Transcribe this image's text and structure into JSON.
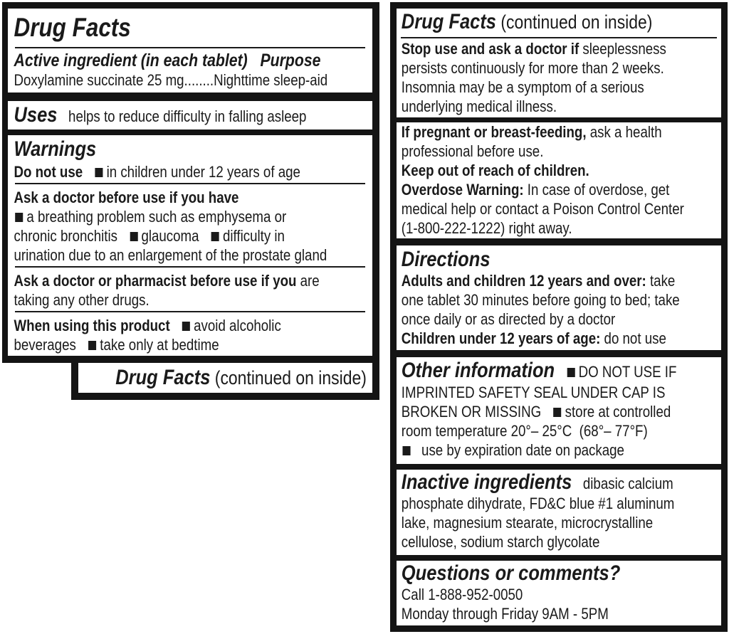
{
  "left_panel": {
    "sections": [
      {
        "groups": [
          [
            [
              [
                "t-big",
                "Drug Facts"
              ]
            ]
          ],
          [
            [
              [
                "t-sub",
                "Active ingredient (in each tablet)   Purpose"
              ]
            ],
            [
              [
                "n",
                "Doxylamine succinate 25 mg........Nighttime sleep-aid"
              ]
            ]
          ]
        ]
      },
      {
        "groups": [
          [
            [
              [
                "t",
                "Uses"
              ],
              [
                "n",
                "   helps to reduce difficulty in falling asleep"
              ]
            ]
          ]
        ]
      },
      {
        "groups": [
          [
            [
              [
                "t",
                "Warnings"
              ]
            ],
            [
              [
                "b",
                "Do not use"
              ],
              [
                "n",
                "   "
              ],
              [
                "sq",
                ""
              ],
              [
                "n",
                "in children under 12 years of age"
              ]
            ]
          ],
          [
            [
              [
                "b",
                "Ask a doctor before use if you have"
              ]
            ],
            [
              [
                "sq",
                ""
              ],
              [
                "n",
                "a breathing problem such as emphysema or"
              ]
            ],
            [
              [
                "n",
                "chronic bronchitis   "
              ],
              [
                "sq",
                ""
              ],
              [
                "n",
                "glaucoma   "
              ],
              [
                "sq",
                ""
              ],
              [
                "n",
                "difficulty in"
              ]
            ],
            [
              [
                "n",
                "urination due to an enlargement of the prostate gland"
              ]
            ]
          ],
          [
            [
              [
                "b",
                "Ask a doctor or pharmacist before use if you"
              ],
              [
                "n",
                " are"
              ]
            ],
            [
              [
                "n",
                "taking any other drugs."
              ]
            ]
          ],
          [
            [
              [
                "b",
                "When using this product"
              ],
              [
                "n",
                "   "
              ],
              [
                "sq",
                ""
              ],
              [
                "n",
                "avoid alcoholic"
              ]
            ],
            [
              [
                "n",
                "beverages   "
              ],
              [
                "sq",
                ""
              ],
              [
                "n",
                "take only at bedtime"
              ]
            ]
          ]
        ]
      }
    ]
  },
  "tab": {
    "title": "Drug Facts",
    "subtitle": " (continued on inside)"
  },
  "right_panel": {
    "sections": [
      {
        "groups": [
          [
            [
              [
                "t",
                "Drug Facts"
              ],
              [
                "big",
                " (continued on inside)"
              ]
            ]
          ],
          [
            [
              [
                "b",
                "Stop use and ask a doctor if"
              ],
              [
                "n",
                " sleeplessness"
              ]
            ],
            [
              [
                "n",
                "persists continuously for more than 2 weeks."
              ]
            ],
            [
              [
                "n",
                "Insomnia may be a symptom of a serious"
              ]
            ],
            [
              [
                "n",
                "underlying medical illness."
              ]
            ]
          ]
        ]
      },
      {
        "groups": [
          [
            [
              [
                "b",
                "If pregnant or breast-feeding,"
              ],
              [
                "n",
                " ask a health"
              ]
            ],
            [
              [
                "n",
                "professional before use."
              ]
            ],
            [
              [
                "b",
                "Keep out of reach of children."
              ]
            ],
            [
              [
                "b",
                "Overdose Warning:"
              ],
              [
                "n",
                " In case of overdose, get"
              ]
            ],
            [
              [
                "n",
                "medical help or contact a Poison Control Center"
              ]
            ],
            [
              [
                "n",
                "(1-800-222-1222) right away."
              ]
            ]
          ]
        ]
      },
      {
        "groups": [
          [
            [
              [
                "t",
                "Directions"
              ]
            ],
            [
              [
                "b",
                "Adults and children 12 years and over:"
              ],
              [
                "n",
                " take"
              ]
            ],
            [
              [
                "n",
                "one tablet 30 minutes before going to bed; take"
              ]
            ],
            [
              [
                "n",
                "once daily or as directed by a doctor"
              ]
            ],
            [
              [
                "b",
                "Children under 12 years of age:"
              ],
              [
                "n",
                " do not use"
              ]
            ]
          ]
        ]
      },
      {
        "groups": [
          [
            [
              [
                "t",
                "Other information"
              ],
              [
                "n",
                "   "
              ],
              [
                "sq",
                ""
              ],
              [
                "n",
                "DO NOT USE IF"
              ]
            ],
            [
              [
                "n",
                "IMPRINTED SAFETY SEAL UNDER CAP IS"
              ]
            ],
            [
              [
                "n",
                "BROKEN OR MISSING   "
              ],
              [
                "sq",
                ""
              ],
              [
                "n",
                "store at controlled"
              ]
            ],
            [
              [
                "n",
                "room temperature 20°– 25°C  (68°– 77°F)"
              ]
            ],
            [
              [
                "sq",
                ""
              ],
              [
                "n",
                "  use by expiration date on package"
              ]
            ]
          ]
        ]
      },
      {
        "groups": [
          [
            [
              [
                "t",
                "Inactive ingredients"
              ],
              [
                "n",
                "   dibasic calcium"
              ]
            ],
            [
              [
                "n",
                "phosphate dihydrate, FD&C blue #1 aluminum"
              ]
            ],
            [
              [
                "n",
                "lake, magnesium stearate, microcrystalline"
              ]
            ],
            [
              [
                "n",
                "cellulose, sodium starch glycolate"
              ]
            ]
          ]
        ]
      },
      {
        "groups": [
          [
            [
              [
                "t",
                "Questions or comments?"
              ]
            ],
            [
              [
                "n",
                "Call 1-888-952-0050"
              ]
            ],
            [
              [
                "n",
                "Monday through Friday 9AM - 5PM"
              ]
            ]
          ]
        ]
      }
    ]
  },
  "colors": {
    "border": "#141414",
    "text": "#1a1a1a",
    "background": "#ffffff"
  }
}
